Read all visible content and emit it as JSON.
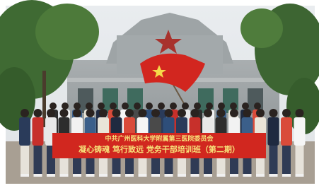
{
  "banner": {
    "top_line": "中共广州医科大学附属第三医院委员会",
    "main_line": "凝心铸魂 笃行致远 党务干部培训班（第二期）"
  }
}
